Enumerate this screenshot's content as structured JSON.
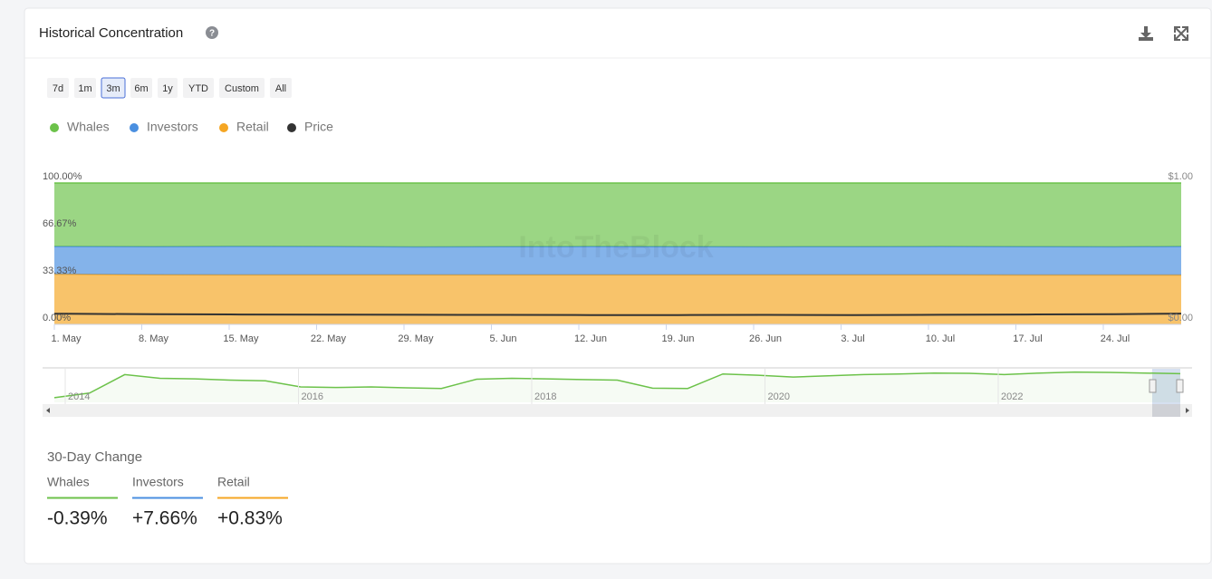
{
  "header": {
    "title": "Historical Concentration"
  },
  "ranges": [
    "7d",
    "1m",
    "3m",
    "6m",
    "1y",
    "YTD",
    "Custom",
    "All"
  ],
  "selected_range": 2,
  "watermark": "IntoTheBlock",
  "chart_data": {
    "type": "stacked-area",
    "categories": [
      null,
      "1. May",
      "8. May",
      "15. May",
      "22. May",
      "29. May",
      "5. Jun",
      "12. Jun",
      "19. Jun",
      "26. Jun",
      "3. Jul",
      "10. Jul",
      "17. Jul",
      "24. Jul",
      null
    ],
    "series": [
      {
        "name": "Whales",
        "color": "#6cc24a",
        "values": [
          44.9,
          44.9,
          45.0,
          44.8,
          44.9,
          45.2,
          45.0,
          44.9,
          45.0,
          45.1,
          45.0,
          44.9,
          45.0,
          45.1,
          44.9
        ]
      },
      {
        "name": "Investors",
        "color": "#4a8fe0",
        "values": [
          19.6,
          19.6,
          19.9,
          20.2,
          20.1,
          19.8,
          20.0,
          20.1,
          20.0,
          19.9,
          20.0,
          20.1,
          20.1,
          20.0,
          20.2
        ]
      },
      {
        "name": "Retail",
        "color": "#f5a623",
        "values": [
          35.5,
          35.5,
          35.1,
          35.0,
          35.0,
          35.0,
          35.0,
          35.0,
          35.0,
          35.0,
          35.0,
          35.0,
          34.9,
          34.9,
          34.9
        ]
      },
      {
        "name": "Price",
        "color": "#333333",
        "axis": "y2",
        "values": [
          0.075,
          0.075,
          0.072,
          0.07,
          0.069,
          0.068,
          0.067,
          0.066,
          0.066,
          0.067,
          0.066,
          0.068,
          0.07,
          0.072,
          0.076
        ]
      }
    ],
    "stack_order": [
      2,
      1,
      0
    ],
    "ylim": [
      0,
      100
    ],
    "yticks": [
      {
        "value": 0,
        "label": "0.00%"
      },
      {
        "value": 33.33,
        "label": "33.33%"
      },
      {
        "value": 66.67,
        "label": "66.67%"
      },
      {
        "value": 100,
        "label": "100.00%"
      }
    ],
    "y2lim": [
      0,
      1
    ],
    "y2ticks": [
      {
        "value": 0,
        "label": "$0.00"
      },
      {
        "value": 1,
        "label": "$1.00"
      }
    ],
    "legend": "top-left"
  },
  "navigator": {
    "years": [
      "2014",
      "2016",
      "2018",
      "2020",
      "2022"
    ],
    "color": "#6cc24a",
    "values": [
      15,
      30,
      90,
      78,
      76,
      72,
      70,
      50,
      48,
      50,
      47,
      45,
      75,
      78,
      76,
      74,
      72,
      46,
      45,
      92,
      88,
      82,
      86,
      90,
      92,
      95,
      94,
      90,
      95,
      98,
      97,
      95,
      93
    ]
  },
  "change": {
    "title": "30-Day Change",
    "items": [
      {
        "name": "Whales",
        "value": "-0.39%",
        "color": "#6cc24a"
      },
      {
        "name": "Investors",
        "value": "+7.66%",
        "color": "#4a8fe0"
      },
      {
        "name": "Retail",
        "value": "+0.83%",
        "color": "#f5a623"
      }
    ]
  }
}
